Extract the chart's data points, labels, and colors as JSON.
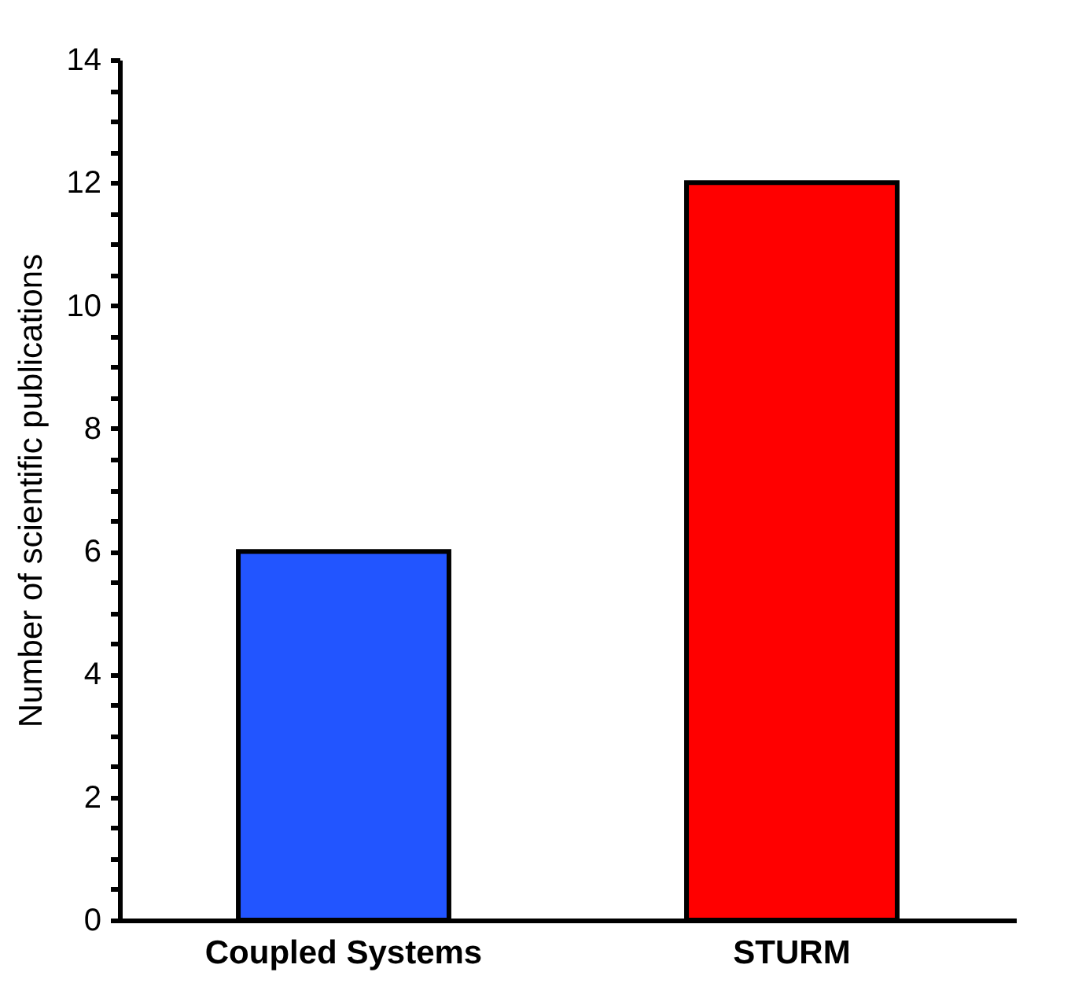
{
  "chart_data": {
    "type": "bar",
    "ylabel": "Number of scientific publications",
    "categories": [
      "Coupled Systems",
      "STURM"
    ],
    "values": [
      6,
      12
    ],
    "colors": [
      "#2255ff",
      "#ff0000"
    ],
    "ylim": [
      0,
      14
    ],
    "yticks": [
      0,
      {
        "value": 0.5,
        "label": null
      },
      {
        "value": 1,
        "label": null
      },
      {
        "value": 1.5,
        "label": null
      },
      2,
      {
        "value": 2.5,
        "label": null
      },
      {
        "value": 3,
        "label": null
      },
      {
        "value": 3.5,
        "label": null
      },
      4,
      {
        "value": 4.5,
        "label": null
      },
      {
        "value": 5,
        "label": null
      },
      {
        "value": 5.5,
        "label": null
      },
      6,
      {
        "value": 6.5,
        "label": null
      },
      {
        "value": 7,
        "label": null
      },
      {
        "value": 7.5,
        "label": null
      },
      8,
      {
        "value": 8.5,
        "label": null
      },
      {
        "value": 9,
        "label": null
      },
      {
        "value": 9.5,
        "label": null
      },
      10,
      {
        "value": 10.5,
        "label": null
      },
      {
        "value": 11,
        "label": null
      },
      {
        "value": 11.5,
        "label": null
      },
      12,
      {
        "value": 12.5,
        "label": null
      },
      {
        "value": 13,
        "label": null
      },
      {
        "value": 13.5,
        "label": null
      },
      14
    ],
    "grid": false
  }
}
